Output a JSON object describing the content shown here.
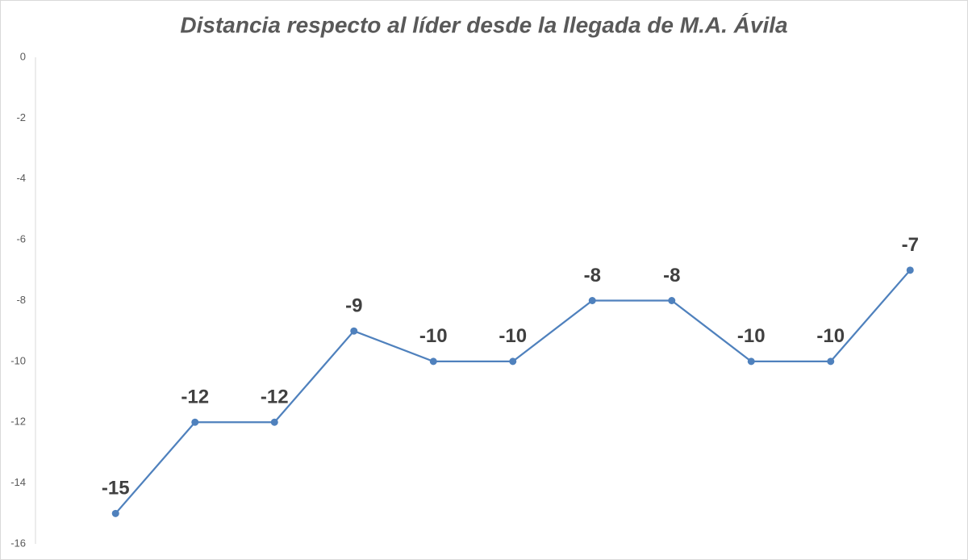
{
  "chart_data": {
    "type": "line",
    "title": "Distancia respecto al líder desde la llegada de M.A. Ávila",
    "series": [
      {
        "color": "#4f81bd",
        "values": [
          -15,
          -12,
          -12,
          -9,
          -10,
          -10,
          -8,
          -8,
          -10,
          -10,
          -7
        ]
      }
    ],
    "ylim": [
      -16,
      0
    ],
    "yticks": [
      0,
      -2,
      -4,
      -6,
      -8,
      -10,
      -12,
      -14,
      -16
    ],
    "grid": false
  }
}
